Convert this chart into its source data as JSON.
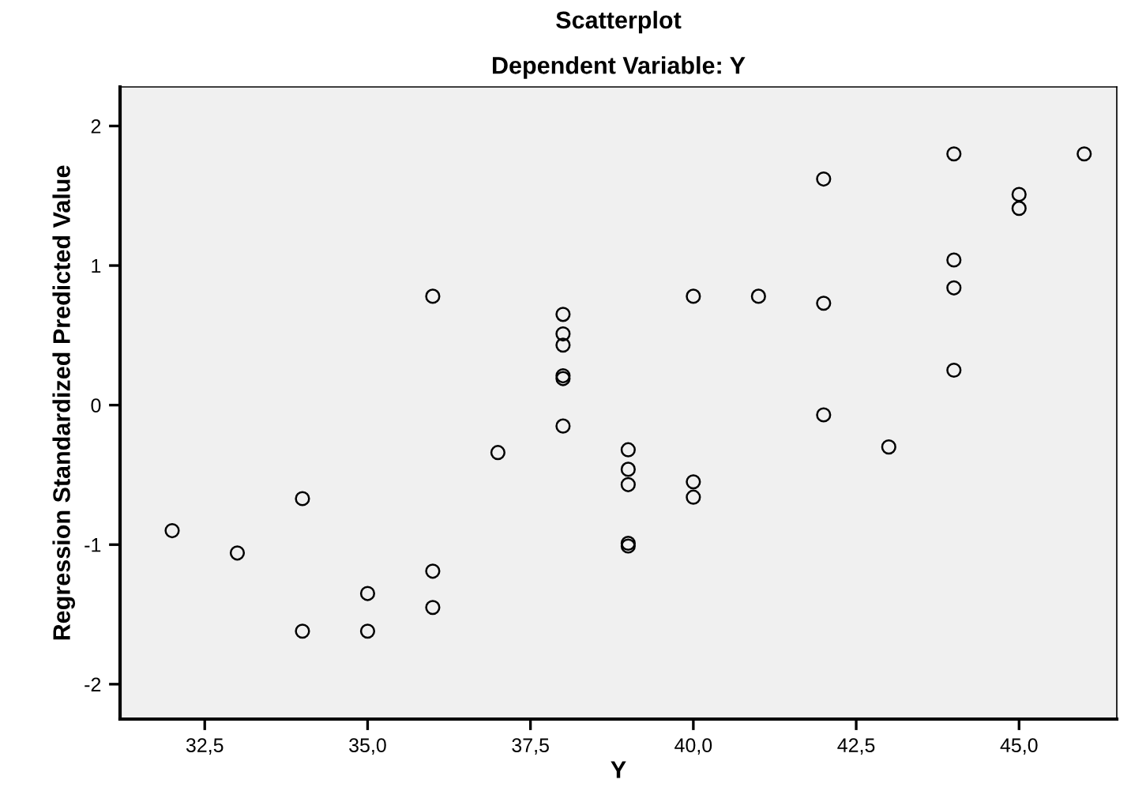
{
  "chart_data": {
    "type": "scatter",
    "title": "Scatterplot",
    "subtitle": "Dependent Variable: Y",
    "xlabel": "Y",
    "ylabel": "Regression Standardized Predicted Value",
    "x": [
      32,
      33,
      34,
      34,
      35,
      35,
      36,
      36,
      36,
      37,
      38,
      38,
      38,
      38,
      38,
      38,
      39,
      39,
      39,
      39,
      39,
      40,
      40,
      40,
      41,
      42,
      42,
      42,
      43,
      44,
      44,
      44,
      44,
      45,
      45,
      46
    ],
    "series": [
      {
        "color": "#000000",
        "values": [
          -0.9,
          -1.06,
          -0.67,
          -1.62,
          -1.35,
          -1.62,
          0.78,
          -1.19,
          -1.45,
          -0.34,
          0.65,
          0.51,
          0.43,
          0.21,
          0.19,
          -0.15,
          -0.32,
          -0.46,
          -0.57,
          -0.99,
          -1.01,
          0.78,
          -0.55,
          -0.66,
          0.78,
          0.73,
          -0.07,
          1.62,
          -0.3,
          1.04,
          0.84,
          0.25,
          1.8,
          1.51,
          1.41,
          1.8
        ]
      }
    ],
    "xlim": [
      31.2,
      46.5
    ],
    "ylim": [
      -2.25,
      2.28
    ],
    "xticks": [
      {
        "value": 32.5,
        "label": "32,5"
      },
      {
        "value": 35,
        "label": "35,0"
      },
      {
        "value": 37.5,
        "label": "37,5"
      },
      {
        "value": 40,
        "label": "40,0"
      },
      {
        "value": 42.5,
        "label": "42,5"
      },
      {
        "value": 45,
        "label": "45,0"
      }
    ],
    "yticks": [
      -2,
      -1,
      0,
      1,
      2
    ],
    "marker": "circle",
    "grid": false
  }
}
